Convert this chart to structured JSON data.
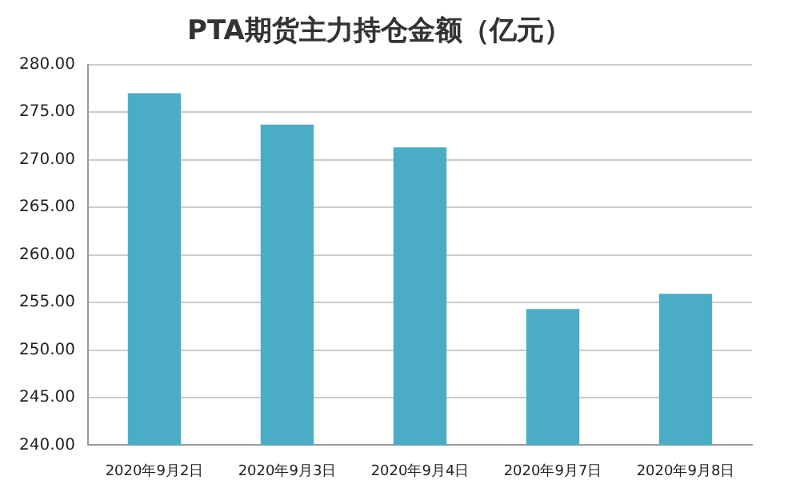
{
  "chart_data": {
    "type": "bar",
    "title": "PTA期货主力持仓金额（亿元）",
    "categories": [
      "2020年9月2日",
      "2020年9月3日",
      "2020年9月4日",
      "2020年9月7日",
      "2020年9月8日"
    ],
    "values": [
      277.0,
      273.7,
      271.3,
      254.3,
      255.9
    ],
    "color": "#4bacc6",
    "ylim": [
      240,
      280
    ],
    "yticks": [
      {
        "value": 240,
        "label": "240.00"
      },
      {
        "value": 245,
        "label": "245.00"
      },
      {
        "value": 250,
        "label": "250.00"
      },
      {
        "value": 255,
        "label": "255.00"
      },
      {
        "value": 260,
        "label": "260.00"
      },
      {
        "value": 265,
        "label": "265.00"
      },
      {
        "value": 270,
        "label": "270.00"
      },
      {
        "value": 275,
        "label": "275.00"
      },
      {
        "value": 280,
        "label": "280.00"
      }
    ],
    "grid": "y",
    "legend": false
  }
}
